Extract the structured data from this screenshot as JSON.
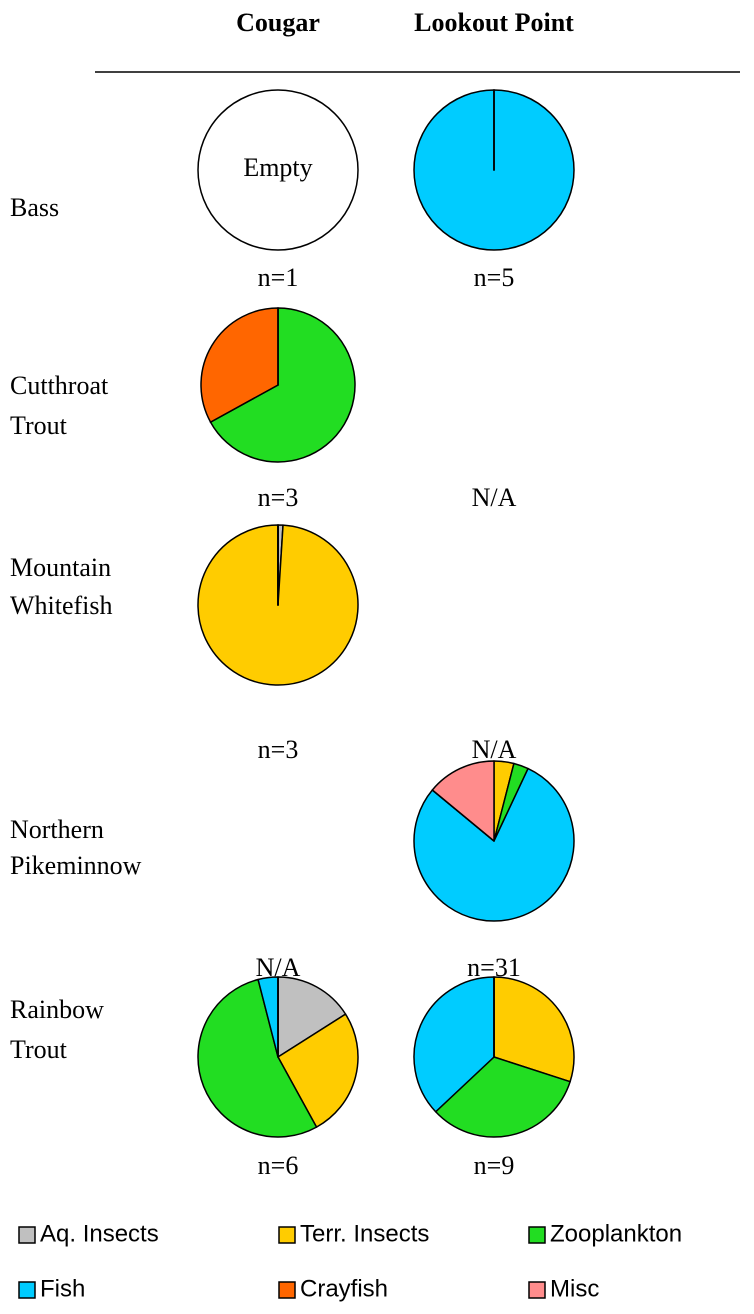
{
  "columns": [
    "Cougar",
    "Lookout Point"
  ],
  "rows": [
    [
      "Bass"
    ],
    [
      "Cutthroat",
      "Trout"
    ],
    [
      "Mountain",
      "Whitefish"
    ],
    [
      "Northern",
      "Pikeminnow"
    ],
    [
      "Rainbow",
      "Trout"
    ]
  ],
  "legend": {
    "categories": [
      "Aq. Insects",
      "Terr. Insects",
      "Zooplankton",
      "Fish",
      "Crayfish",
      "Misc"
    ],
    "colors": [
      "#c0c0c0",
      "#ffcc00",
      "#22dd22",
      "#00ccff",
      "#ff6600",
      "#ff8c8c"
    ]
  },
  "chart_data": [
    {
      "type": "pie",
      "annotation": "Empty",
      "values": [
        0,
        0,
        0,
        0,
        0,
        0
      ],
      "n": "n=1"
    },
    {
      "type": "pie",
      "values": [
        0,
        0,
        0,
        100,
        0,
        0
      ],
      "n": "n=5"
    },
    {
      "type": "pie",
      "values": [
        0,
        0,
        67,
        0,
        33,
        0
      ],
      "n": "n=3"
    },
    {
      "type": "pie",
      "values": [
        1,
        99,
        0,
        0,
        0,
        0
      ],
      "n": "n=3"
    },
    {
      "type": "pie",
      "values": [
        0,
        4,
        3,
        79,
        0,
        14
      ],
      "n": "n=31"
    },
    {
      "type": "pie",
      "values": [
        16,
        26,
        54,
        4,
        0,
        0
      ],
      "n": "n=6"
    },
    {
      "type": "pie",
      "values": [
        0,
        30,
        33,
        37,
        0,
        0
      ],
      "n": "n=9"
    }
  ],
  "na": [
    "N/A",
    "N/A",
    "N/A"
  ]
}
